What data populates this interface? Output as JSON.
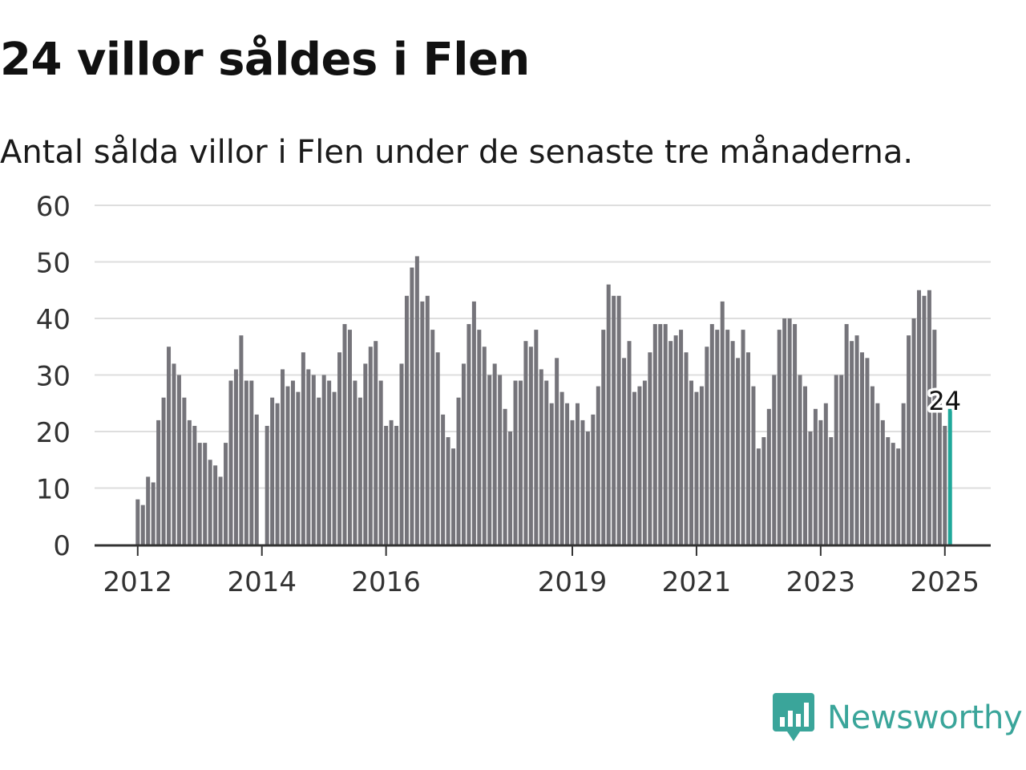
{
  "title": "24 villor såldes i Flen",
  "subtitle": "Antal sålda villor i Flen under de senaste tre månaderna.",
  "brand": {
    "name": "Newsworthy",
    "color": "#3aa59a"
  },
  "colors": {
    "bar": "#75747a",
    "highlight": "#1fa89a",
    "grid": "#dedede",
    "axis": "#333333"
  },
  "chart_data": {
    "type": "bar",
    "ylim": [
      0,
      60
    ],
    "yticks": [
      0,
      10,
      20,
      30,
      40,
      50,
      60
    ],
    "xticks": [
      {
        "label": "2012",
        "index": 0
      },
      {
        "label": "2014",
        "index": 24
      },
      {
        "label": "2016",
        "index": 48
      },
      {
        "label": "2019",
        "index": 84
      },
      {
        "label": "2021",
        "index": 108
      },
      {
        "label": "2023",
        "index": 132
      },
      {
        "label": "2025",
        "index": 156
      }
    ],
    "grid": true,
    "annotation": {
      "label": "24",
      "index": 156
    },
    "values": [
      8,
      7,
      12,
      11,
      22,
      26,
      35,
      32,
      30,
      26,
      22,
      21,
      18,
      18,
      15,
      14,
      12,
      18,
      29,
      31,
      37,
      29,
      29,
      23,
      null,
      21,
      26,
      25,
      31,
      28,
      29,
      27,
      34,
      31,
      30,
      26,
      30,
      29,
      27,
      34,
      39,
      38,
      29,
      26,
      32,
      35,
      36,
      29,
      21,
      22,
      21,
      32,
      44,
      49,
      51,
      43,
      44,
      38,
      34,
      23,
      19,
      17,
      26,
      32,
      39,
      43,
      38,
      35,
      30,
      32,
      30,
      24,
      20,
      29,
      29,
      36,
      35,
      38,
      31,
      29,
      25,
      33,
      27,
      25,
      22,
      25,
      22,
      20,
      23,
      28,
      38,
      46,
      44,
      44,
      33,
      36,
      27,
      28,
      29,
      34,
      39,
      39,
      39,
      36,
      37,
      38,
      34,
      29,
      27,
      28,
      35,
      39,
      38,
      43,
      38,
      36,
      33,
      38,
      34,
      28,
      17,
      19,
      24,
      30,
      38,
      40,
      40,
      39,
      30,
      28,
      20,
      24,
      22,
      25,
      19,
      30,
      30,
      39,
      36,
      37,
      34,
      33,
      28,
      25,
      22,
      19,
      18,
      17,
      25,
      37,
      40,
      45,
      44,
      45,
      38,
      27,
      21,
      24
    ]
  }
}
